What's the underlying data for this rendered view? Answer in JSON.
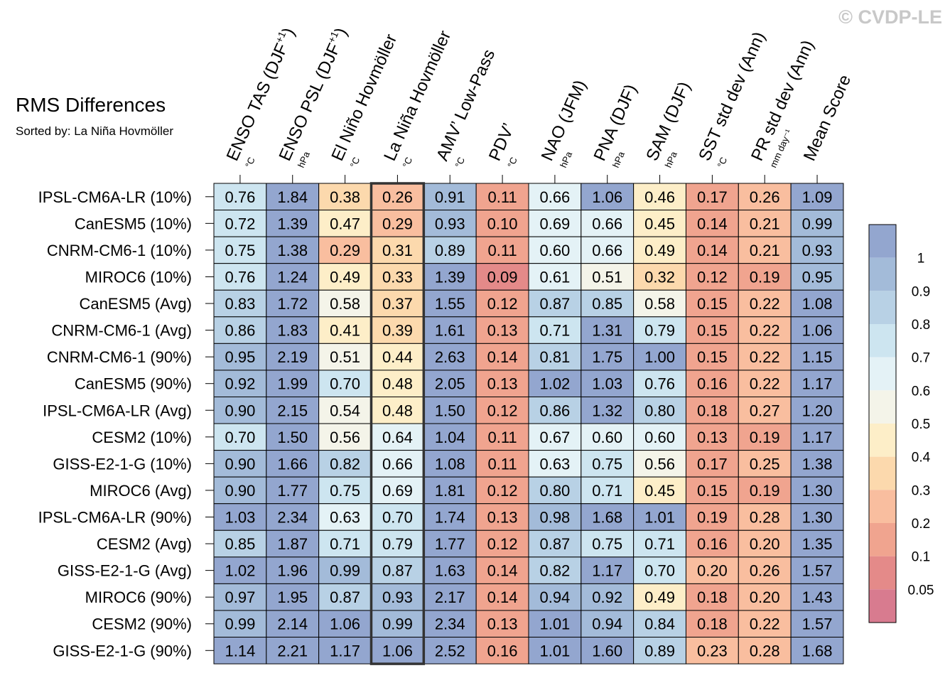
{
  "watermark": "© CVDP-LE",
  "title": "RMS Differences",
  "subtitle": "Sorted by: La Niña Hovmöller",
  "chart_data": {
    "type": "heatmap",
    "title": "RMS Differences",
    "subtitle": "Sorted by: La Niña Hovmöller",
    "highlight_column": 3,
    "columns": [
      {
        "label": "ENSO TAS (DJF",
        "sup": "+1",
        "tail": ")",
        "unit": "°C"
      },
      {
        "label": "ENSO PSL (DJF",
        "sup": "+1",
        "tail": ")",
        "unit": "hPa"
      },
      {
        "label": "El Niño Hovmöller",
        "sup": "",
        "tail": "",
        "unit": "°C"
      },
      {
        "label": "La Niña Hovmöller",
        "sup": "",
        "tail": "",
        "unit": "°C"
      },
      {
        "label": "AMV’ Low-Pass",
        "sup": "",
        "tail": "",
        "unit": "°C"
      },
      {
        "label": "PDV’",
        "sup": "",
        "tail": "",
        "unit": "°C"
      },
      {
        "label": "NAO (JFM)",
        "sup": "",
        "tail": "",
        "unit": "hPa"
      },
      {
        "label": "PNA (DJF)",
        "sup": "",
        "tail": "",
        "unit": "hPa"
      },
      {
        "label": "SAM (DJF)",
        "sup": "",
        "tail": "",
        "unit": "hPa"
      },
      {
        "label": "SST std dev (Ann)",
        "sup": "",
        "tail": "",
        "unit": "°C"
      },
      {
        "label": "PR std dev (Ann)",
        "sup": "",
        "tail": "",
        "unit": "mm day⁻¹"
      },
      {
        "label": "Mean Score",
        "sup": "",
        "tail": "",
        "unit": ""
      }
    ],
    "rows": [
      "IPSL-CM6A-LR (10%)",
      "CanESM5 (10%)",
      "CNRM-CM6-1 (10%)",
      "MIROC6 (10%)",
      "CanESM5 (Avg)",
      "CNRM-CM6-1 (Avg)",
      "CNRM-CM6-1 (90%)",
      "CanESM5 (90%)",
      "IPSL-CM6A-LR (Avg)",
      "CESM2 (10%)",
      "GISS-E2-1-G (10%)",
      "MIROC6 (Avg)",
      "IPSL-CM6A-LR (90%)",
      "CESM2 (Avg)",
      "GISS-E2-1-G (Avg)",
      "MIROC6 (90%)",
      "CESM2 (90%)",
      "GISS-E2-1-G (90%)"
    ],
    "values": [
      [
        0.76,
        1.84,
        0.38,
        0.26,
        0.91,
        0.11,
        0.66,
        1.06,
        0.46,
        0.17,
        0.26,
        1.09
      ],
      [
        0.72,
        1.39,
        0.47,
        0.29,
        0.93,
        0.1,
        0.69,
        0.66,
        0.45,
        0.14,
        0.21,
        0.99
      ],
      [
        0.75,
        1.38,
        0.29,
        0.31,
        0.89,
        0.11,
        0.6,
        0.66,
        0.49,
        0.14,
        0.21,
        0.93
      ],
      [
        0.76,
        1.24,
        0.49,
        0.33,
        1.39,
        0.09,
        0.61,
        0.51,
        0.32,
        0.12,
        0.19,
        0.95
      ],
      [
        0.83,
        1.72,
        0.58,
        0.37,
        1.55,
        0.12,
        0.87,
        0.85,
        0.58,
        0.15,
        0.22,
        1.08
      ],
      [
        0.86,
        1.83,
        0.41,
        0.39,
        1.61,
        0.13,
        0.71,
        1.31,
        0.79,
        0.15,
        0.22,
        1.06
      ],
      [
        0.95,
        2.19,
        0.51,
        0.44,
        2.63,
        0.14,
        0.81,
        1.75,
        1.0,
        0.15,
        0.22,
        1.15
      ],
      [
        0.92,
        1.99,
        0.7,
        0.48,
        2.05,
        0.13,
        1.02,
        1.03,
        0.76,
        0.16,
        0.22,
        1.17
      ],
      [
        0.9,
        2.15,
        0.54,
        0.48,
        1.5,
        0.12,
        0.86,
        1.32,
        0.8,
        0.18,
        0.27,
        1.2
      ],
      [
        0.7,
        1.5,
        0.56,
        0.64,
        1.04,
        0.11,
        0.67,
        0.6,
        0.6,
        0.13,
        0.19,
        1.17
      ],
      [
        0.9,
        1.66,
        0.82,
        0.66,
        1.08,
        0.11,
        0.63,
        0.75,
        0.56,
        0.17,
        0.25,
        1.38
      ],
      [
        0.9,
        1.77,
        0.75,
        0.69,
        1.81,
        0.12,
        0.8,
        0.71,
        0.45,
        0.15,
        0.19,
        1.3
      ],
      [
        1.03,
        2.34,
        0.63,
        0.7,
        1.74,
        0.13,
        0.98,
        1.68,
        1.01,
        0.19,
        0.28,
        1.3
      ],
      [
        0.85,
        1.87,
        0.71,
        0.79,
        1.77,
        0.12,
        0.87,
        0.75,
        0.71,
        0.16,
        0.2,
        1.35
      ],
      [
        1.02,
        1.96,
        0.99,
        0.87,
        1.63,
        0.14,
        0.82,
        1.17,
        0.7,
        0.2,
        0.26,
        1.57
      ],
      [
        0.97,
        1.95,
        0.87,
        0.93,
        2.17,
        0.14,
        0.94,
        0.92,
        0.49,
        0.18,
        0.2,
        1.43
      ],
      [
        0.99,
        2.14,
        1.06,
        0.99,
        2.34,
        0.13,
        1.01,
        0.94,
        0.84,
        0.18,
        0.22,
        1.57
      ],
      [
        1.14,
        2.21,
        1.17,
        1.06,
        2.52,
        0.16,
        1.01,
        1.6,
        0.89,
        0.23,
        0.28,
        1.68
      ]
    ],
    "colorbar": {
      "tick_labels": [
        "1",
        "0.9",
        "0.8",
        "0.7",
        "0.6",
        "0.5",
        "0.4",
        "0.3",
        "0.2",
        "0.1",
        "0.05"
      ],
      "colors_top_to_bottom": [
        "#93a6cf",
        "#a3bbd9",
        "#b8d1e5",
        "#cde5f0",
        "#e4f2f6",
        "#f4f4e9",
        "#fdeec8",
        "#fcd9ad",
        "#f9be9f",
        "#f0a48f",
        "#e48a89",
        "#d87b8f"
      ]
    }
  }
}
